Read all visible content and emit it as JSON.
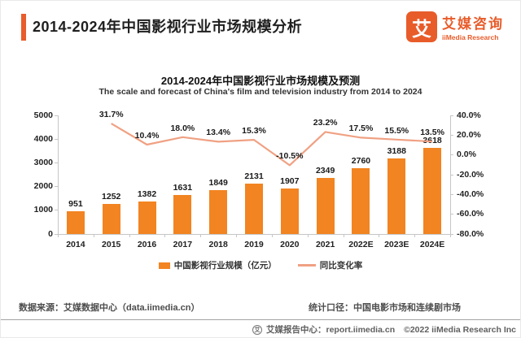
{
  "header": {
    "title": "2014-2024年中国影视行业市场规模分析",
    "logo": {
      "glyph": "艾",
      "name_cn": "艾媒咨询",
      "name_en": "iiMedia Research"
    }
  },
  "chart": {
    "title": "2014-2024年中国影视行业市场规模及预测",
    "subtitle": "The scale and forecast of China's film and television industry from 2014 to 2024"
  },
  "chart_data": {
    "type": "bar+line",
    "title": "2014-2024年中国影视行业市场规模及预测",
    "categories": [
      "2014",
      "2015",
      "2016",
      "2017",
      "2018",
      "2019",
      "2020",
      "2021",
      "2022E",
      "2023E",
      "2024E"
    ],
    "series": [
      {
        "name": "中国影视行业规模（亿元）",
        "type": "bar",
        "axis": "left",
        "color": "#F28421",
        "values": [
          951,
          1252,
          1382,
          1631,
          1849,
          2131,
          1907,
          2349,
          2760,
          3188,
          3618
        ],
        "labels": [
          "951",
          "1252",
          "1382",
          "1631",
          "1849",
          "2131",
          "1907",
          "2349",
          "2760",
          "3188",
          "3618"
        ]
      },
      {
        "name": "同比变化率",
        "type": "line",
        "axis": "right",
        "color": "#F0A183",
        "values": [
          null,
          31.7,
          10.4,
          18.0,
          13.4,
          15.3,
          -10.5,
          23.2,
          17.5,
          15.5,
          13.5
        ],
        "labels": [
          null,
          "31.7%",
          "10.4%",
          "18.0%",
          "13.4%",
          "15.3%",
          "-10.5%",
          "23.2%",
          "17.5%",
          "15.5%",
          "13.5%"
        ]
      }
    ],
    "left_axis": {
      "min": 0,
      "max": 5000,
      "ticks": [
        0,
        1000,
        2000,
        3000,
        4000,
        5000
      ]
    },
    "right_axis": {
      "min": -80,
      "max": 40,
      "ticks": [
        40,
        20,
        0,
        -20,
        -40,
        -60,
        -80
      ],
      "tick_labels": [
        "40.0%",
        "20.0%",
        "0.0%",
        "-20.0%",
        "-40.0%",
        "-60.0%",
        "-80.0%"
      ]
    },
    "grid": false,
    "legend_position": "bottom",
    "legend": [
      {
        "marker": "bar",
        "label": "中国影视行业规模（亿元）",
        "color": "#F28421"
      },
      {
        "marker": "line",
        "label": "同比变化率",
        "color": "#F0A183"
      }
    ]
  },
  "info": {
    "source": "数据来源：艾媒数据中心（data.iimedia.cn）",
    "scope": "统计口径：中国电影市场和连续剧市场"
  },
  "footer": {
    "badge_glyph": "艾",
    "report_center": "艾媒报告中心：report.iimedia.cn",
    "copyright": "©2022  iiMedia Research Inc"
  }
}
